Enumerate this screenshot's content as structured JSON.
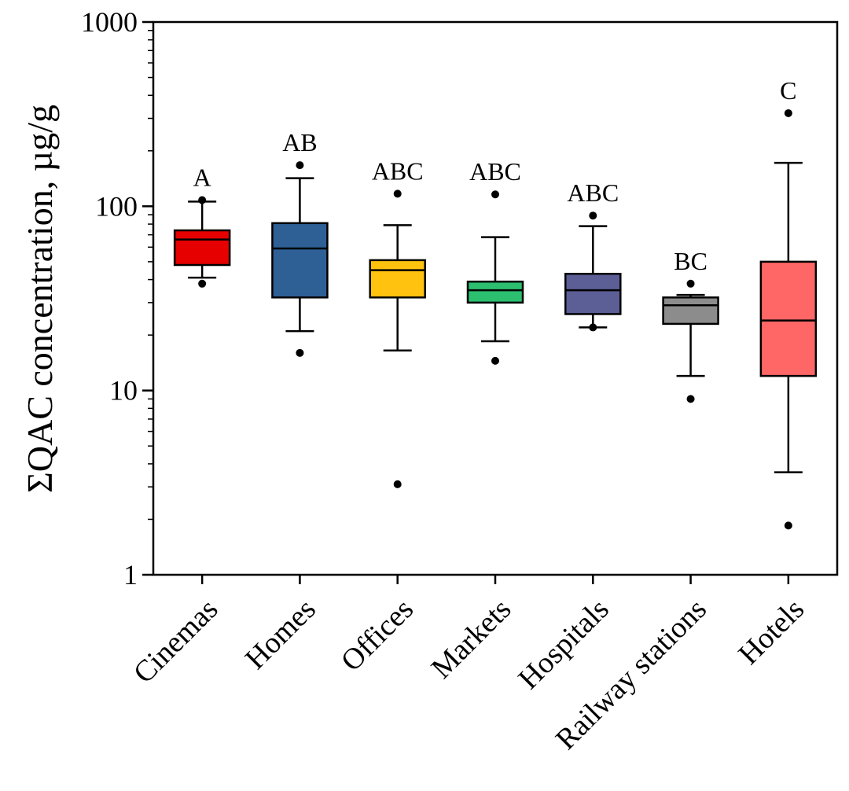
{
  "chart_data": {
    "type": "box",
    "ylabel": "ΣQAC concentration, µg/g",
    "yscale": "log",
    "ylim": [
      1,
      1000
    ],
    "yticks": [
      {
        "value": 1,
        "label": "1"
      },
      {
        "value": 10,
        "label": "10"
      },
      {
        "value": 100,
        "label": "100"
      },
      {
        "value": 1000,
        "label": "1000"
      }
    ],
    "categories": [
      "Cinemas",
      "Homes",
      "Offices",
      "Markets",
      "Hospitals",
      "Railway stations",
      "Hotels"
    ],
    "boxes": [
      {
        "category": "Cinemas",
        "color": "#e60000",
        "whisker_low": 41,
        "q1": 48,
        "median": 66,
        "q3": 74,
        "whisker_high": 106,
        "outliers": [
          38,
          108
        ],
        "group_label": "A"
      },
      {
        "category": "Homes",
        "color": "#2e6096",
        "whisker_low": 21,
        "q1": 32,
        "median": 59,
        "q3": 81,
        "whisker_high": 142,
        "outliers": [
          16,
          167
        ],
        "group_label": "AB"
      },
      {
        "category": "Offices",
        "color": "#ffc20e",
        "whisker_low": 16.5,
        "q1": 32,
        "median": 45,
        "q3": 51,
        "whisker_high": 79,
        "outliers": [
          3.1,
          117
        ],
        "group_label": "ABC"
      },
      {
        "category": "Markets",
        "color": "#2bbf6f",
        "whisker_low": 18.5,
        "q1": 30,
        "median": 35,
        "q3": 39,
        "whisker_high": 68,
        "outliers": [
          14.5,
          116
        ],
        "group_label": "ABC"
      },
      {
        "category": "Hospitals",
        "color": "#5c5e96",
        "whisker_low": 22,
        "q1": 26,
        "median": 35,
        "q3": 43,
        "whisker_high": 78,
        "outliers": [
          22,
          89
        ],
        "group_label": "ABC"
      },
      {
        "category": "Railway stations",
        "color": "#8c8c8c",
        "whisker_low": 12,
        "q1": 23,
        "median": 29,
        "q3": 32,
        "whisker_high": 33,
        "outliers": [
          9,
          38
        ],
        "group_label": "BC"
      },
      {
        "category": "Hotels",
        "color": "#ff6666",
        "whisker_low": 3.6,
        "q1": 12,
        "median": 24,
        "q3": 50,
        "whisker_high": 172,
        "outliers": [
          1.85,
          320
        ],
        "group_label": "C"
      }
    ]
  }
}
